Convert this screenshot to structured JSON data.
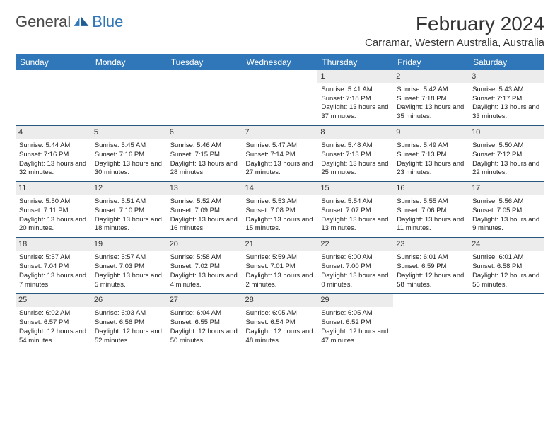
{
  "logo": {
    "text1": "General",
    "text2": "Blue"
  },
  "title": "February 2024",
  "subtitle": "Carramar, Western Australia, Australia",
  "colors": {
    "header_bg": "#2f77b8",
    "header_fg": "#ffffff",
    "daynum_bg": "#ececec",
    "rule": "#28567f"
  },
  "weekdays": [
    "Sunday",
    "Monday",
    "Tuesday",
    "Wednesday",
    "Thursday",
    "Friday",
    "Saturday"
  ],
  "weeks": [
    [
      null,
      null,
      null,
      null,
      {
        "n": "1",
        "sr": "Sunrise: 5:41 AM",
        "ss": "Sunset: 7:18 PM",
        "dl": "Daylight: 13 hours and 37 minutes."
      },
      {
        "n": "2",
        "sr": "Sunrise: 5:42 AM",
        "ss": "Sunset: 7:18 PM",
        "dl": "Daylight: 13 hours and 35 minutes."
      },
      {
        "n": "3",
        "sr": "Sunrise: 5:43 AM",
        "ss": "Sunset: 7:17 PM",
        "dl": "Daylight: 13 hours and 33 minutes."
      }
    ],
    [
      {
        "n": "4",
        "sr": "Sunrise: 5:44 AM",
        "ss": "Sunset: 7:16 PM",
        "dl": "Daylight: 13 hours and 32 minutes."
      },
      {
        "n": "5",
        "sr": "Sunrise: 5:45 AM",
        "ss": "Sunset: 7:16 PM",
        "dl": "Daylight: 13 hours and 30 minutes."
      },
      {
        "n": "6",
        "sr": "Sunrise: 5:46 AM",
        "ss": "Sunset: 7:15 PM",
        "dl": "Daylight: 13 hours and 28 minutes."
      },
      {
        "n": "7",
        "sr": "Sunrise: 5:47 AM",
        "ss": "Sunset: 7:14 PM",
        "dl": "Daylight: 13 hours and 27 minutes."
      },
      {
        "n": "8",
        "sr": "Sunrise: 5:48 AM",
        "ss": "Sunset: 7:13 PM",
        "dl": "Daylight: 13 hours and 25 minutes."
      },
      {
        "n": "9",
        "sr": "Sunrise: 5:49 AM",
        "ss": "Sunset: 7:13 PM",
        "dl": "Daylight: 13 hours and 23 minutes."
      },
      {
        "n": "10",
        "sr": "Sunrise: 5:50 AM",
        "ss": "Sunset: 7:12 PM",
        "dl": "Daylight: 13 hours and 22 minutes."
      }
    ],
    [
      {
        "n": "11",
        "sr": "Sunrise: 5:50 AM",
        "ss": "Sunset: 7:11 PM",
        "dl": "Daylight: 13 hours and 20 minutes."
      },
      {
        "n": "12",
        "sr": "Sunrise: 5:51 AM",
        "ss": "Sunset: 7:10 PM",
        "dl": "Daylight: 13 hours and 18 minutes."
      },
      {
        "n": "13",
        "sr": "Sunrise: 5:52 AM",
        "ss": "Sunset: 7:09 PM",
        "dl": "Daylight: 13 hours and 16 minutes."
      },
      {
        "n": "14",
        "sr": "Sunrise: 5:53 AM",
        "ss": "Sunset: 7:08 PM",
        "dl": "Daylight: 13 hours and 15 minutes."
      },
      {
        "n": "15",
        "sr": "Sunrise: 5:54 AM",
        "ss": "Sunset: 7:07 PM",
        "dl": "Daylight: 13 hours and 13 minutes."
      },
      {
        "n": "16",
        "sr": "Sunrise: 5:55 AM",
        "ss": "Sunset: 7:06 PM",
        "dl": "Daylight: 13 hours and 11 minutes."
      },
      {
        "n": "17",
        "sr": "Sunrise: 5:56 AM",
        "ss": "Sunset: 7:05 PM",
        "dl": "Daylight: 13 hours and 9 minutes."
      }
    ],
    [
      {
        "n": "18",
        "sr": "Sunrise: 5:57 AM",
        "ss": "Sunset: 7:04 PM",
        "dl": "Daylight: 13 hours and 7 minutes."
      },
      {
        "n": "19",
        "sr": "Sunrise: 5:57 AM",
        "ss": "Sunset: 7:03 PM",
        "dl": "Daylight: 13 hours and 5 minutes."
      },
      {
        "n": "20",
        "sr": "Sunrise: 5:58 AM",
        "ss": "Sunset: 7:02 PM",
        "dl": "Daylight: 13 hours and 4 minutes."
      },
      {
        "n": "21",
        "sr": "Sunrise: 5:59 AM",
        "ss": "Sunset: 7:01 PM",
        "dl": "Daylight: 13 hours and 2 minutes."
      },
      {
        "n": "22",
        "sr": "Sunrise: 6:00 AM",
        "ss": "Sunset: 7:00 PM",
        "dl": "Daylight: 13 hours and 0 minutes."
      },
      {
        "n": "23",
        "sr": "Sunrise: 6:01 AM",
        "ss": "Sunset: 6:59 PM",
        "dl": "Daylight: 12 hours and 58 minutes."
      },
      {
        "n": "24",
        "sr": "Sunrise: 6:01 AM",
        "ss": "Sunset: 6:58 PM",
        "dl": "Daylight: 12 hours and 56 minutes."
      }
    ],
    [
      {
        "n": "25",
        "sr": "Sunrise: 6:02 AM",
        "ss": "Sunset: 6:57 PM",
        "dl": "Daylight: 12 hours and 54 minutes."
      },
      {
        "n": "26",
        "sr": "Sunrise: 6:03 AM",
        "ss": "Sunset: 6:56 PM",
        "dl": "Daylight: 12 hours and 52 minutes."
      },
      {
        "n": "27",
        "sr": "Sunrise: 6:04 AM",
        "ss": "Sunset: 6:55 PM",
        "dl": "Daylight: 12 hours and 50 minutes."
      },
      {
        "n": "28",
        "sr": "Sunrise: 6:05 AM",
        "ss": "Sunset: 6:54 PM",
        "dl": "Daylight: 12 hours and 48 minutes."
      },
      {
        "n": "29",
        "sr": "Sunrise: 6:05 AM",
        "ss": "Sunset: 6:52 PM",
        "dl": "Daylight: 12 hours and 47 minutes."
      },
      null,
      null
    ]
  ]
}
